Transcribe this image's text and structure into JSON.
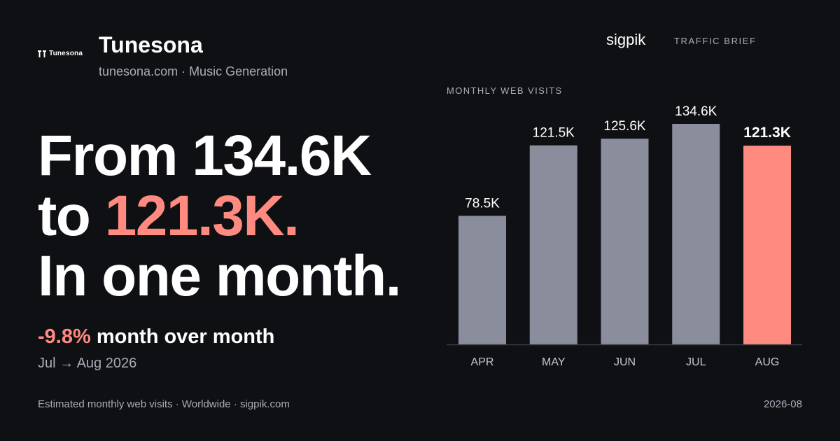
{
  "brand": {
    "logo_text": "Tunesona",
    "name": "Tunesona",
    "subtitle": "tunesona.com · Music Generation"
  },
  "headline": {
    "line1": "From 134.6K",
    "line2_prefix": "to ",
    "line2_accent": "121.3K.",
    "line3": "In one month."
  },
  "change": {
    "pct": "-9.8%",
    "text": " month over month",
    "period": "Jul → Aug 2026"
  },
  "source": {
    "name": "sigpik",
    "brief": "TRAFFIC BRIEF"
  },
  "footer": {
    "left": "Estimated monthly web visits · Worldwide · sigpik.com",
    "right": "2026-08"
  },
  "colors": {
    "background": "#0f1014",
    "bar": "#8a8e9c",
    "highlight": "#ff8a80"
  },
  "chart_data": {
    "type": "bar",
    "title": "MONTHLY WEB VISITS",
    "categories": [
      "APR",
      "MAY",
      "JUN",
      "JUL",
      "AUG"
    ],
    "values": [
      78.5,
      121.5,
      125.6,
      134.6,
      121.3
    ],
    "value_labels": [
      "78.5K",
      "121.5K",
      "125.6K",
      "134.6K",
      "121.3K"
    ],
    "highlight_index": 4,
    "ylim": [
      0,
      134.6
    ],
    "grid": false
  }
}
